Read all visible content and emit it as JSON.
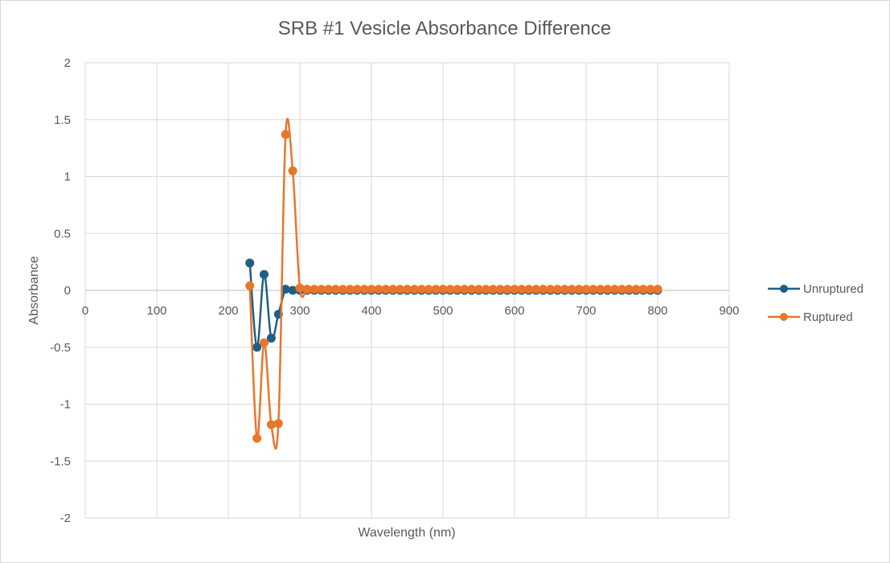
{
  "chart_data": {
    "type": "scatter",
    "title": "SRB #1 Vesicle Absorbance Difference",
    "xlabel": "Wavelength (nm)",
    "ylabel": "Absorbance",
    "xlim": [
      0,
      900
    ],
    "ylim": [
      -2,
      2
    ],
    "x_ticks": [
      "0",
      "100",
      "200",
      "300",
      "400",
      "500",
      "600",
      "700",
      "800",
      "900"
    ],
    "y_ticks": [
      "2",
      "1.5",
      "1",
      "0.5",
      "0",
      "-0.5",
      "-1",
      "-1.5",
      "-2"
    ],
    "grid": true,
    "legend_position": "right",
    "markers": true,
    "smoothed_lines": true,
    "x": [
      230,
      240,
      250,
      260,
      270,
      280,
      290,
      300,
      310,
      320,
      330,
      340,
      350,
      360,
      370,
      380,
      390,
      400,
      410,
      420,
      430,
      440,
      450,
      460,
      470,
      480,
      490,
      500,
      510,
      520,
      530,
      540,
      550,
      560,
      570,
      580,
      590,
      600,
      610,
      620,
      630,
      640,
      650,
      660,
      670,
      680,
      690,
      700,
      710,
      720,
      730,
      740,
      750,
      760,
      770,
      780,
      790,
      800
    ],
    "series": [
      {
        "name": "Unruptured",
        "color": "#1f5f86",
        "values": [
          0.24,
          -0.5,
          0.14,
          -0.42,
          -0.21,
          0.01,
          0.0,
          0.0,
          0.0,
          0.0,
          0.0,
          0.0,
          0.0,
          0.0,
          0.0,
          0.0,
          0.0,
          0.0,
          0.0,
          0.0,
          0.0,
          0.0,
          0.0,
          0.0,
          0.0,
          0.0,
          0.0,
          0.0,
          0.0,
          0.0,
          0.0,
          0.0,
          0.0,
          0.0,
          0.0,
          0.0,
          0.0,
          0.0,
          0.0,
          0.0,
          0.0,
          0.0,
          0.0,
          0.0,
          0.0,
          0.0,
          0.0,
          0.0,
          0.0,
          0.0,
          0.0,
          0.0,
          0.0,
          0.0,
          0.0,
          0.0,
          0.0,
          0.0
        ]
      },
      {
        "name": "Ruptured",
        "color": "#e9762b",
        "values": [
          0.04,
          -1.3,
          -0.46,
          -1.18,
          -1.17,
          1.37,
          1.05,
          0.02,
          0.01,
          0.01,
          0.01,
          0.01,
          0.01,
          0.01,
          0.01,
          0.01,
          0.01,
          0.01,
          0.01,
          0.01,
          0.01,
          0.01,
          0.01,
          0.01,
          0.01,
          0.01,
          0.01,
          0.01,
          0.01,
          0.01,
          0.01,
          0.01,
          0.01,
          0.01,
          0.01,
          0.01,
          0.01,
          0.01,
          0.01,
          0.01,
          0.01,
          0.01,
          0.01,
          0.01,
          0.01,
          0.01,
          0.01,
          0.01,
          0.01,
          0.01,
          0.01,
          0.01,
          0.01,
          0.01,
          0.01,
          0.01,
          0.01,
          0.01
        ]
      }
    ]
  }
}
